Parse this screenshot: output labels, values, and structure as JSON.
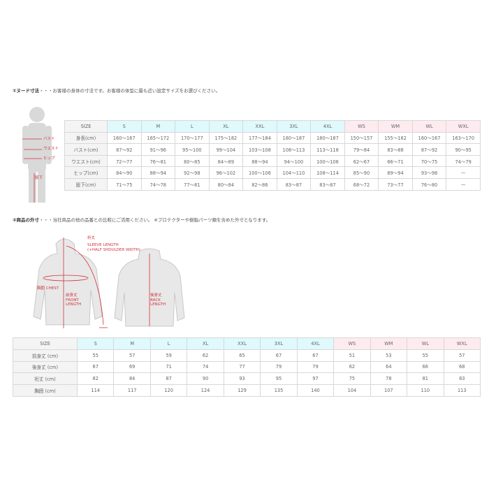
{
  "section1": {
    "title": "①ヌード寸法",
    "note": "・・・お客様の身体の寸法です。お客様の体型に最も近い設定サイズをお選びください。",
    "figure_labels": {
      "bust": "バスト",
      "waist": "ウエスト",
      "hip": "ヒップ",
      "inseam": "股下"
    },
    "headers": [
      "SIZE",
      "S",
      "M",
      "L",
      "XL",
      "XXL",
      "3XL",
      "4XL",
      "WS",
      "WM",
      "WL",
      "WXL"
    ],
    "rows": [
      {
        "label": "身長(cm)",
        "values": [
          "160～167",
          "165～172",
          "170～177",
          "175～182",
          "177～184",
          "180～187",
          "180～187",
          "150～157",
          "155～162",
          "160～167",
          "163～170"
        ]
      },
      {
        "label": "バスト(cm)",
        "values": [
          "87～92",
          "91～96",
          "95～100",
          "99～104",
          "103～108",
          "108～113",
          "113～118",
          "79～84",
          "83～88",
          "87～92",
          "90～95"
        ]
      },
      {
        "label": "ウエスト(cm)",
        "values": [
          "72～77",
          "76～81",
          "80～85",
          "84～89",
          "88～94",
          "94～100",
          "100～106",
          "62～67",
          "66～71",
          "70～75",
          "74～79"
        ]
      },
      {
        "label": "ヒップ(cm)",
        "values": [
          "84～90",
          "88～94",
          "92～98",
          "96～102",
          "100～106",
          "104～110",
          "108～114",
          "85～90",
          "89～94",
          "93～98",
          "—"
        ]
      },
      {
        "label": "股下(cm)",
        "values": [
          "71～75",
          "74～78",
          "77～81",
          "80～84",
          "82～86",
          "83～87",
          "83～87",
          "68～72",
          "73～77",
          "76～80",
          "—"
        ]
      }
    ]
  },
  "section2": {
    "title": "②商品の外寸",
    "note": "・・・当社商品の他の品番との比較にご活用ください。 ※プロテクターや樹脂パーツ類を含めた外寸となります。",
    "figure_labels": {
      "sleeve_jp": "裄丈",
      "sleeve_en1": "SLEEVE LENGTH",
      "sleeve_en2": "(+HALF SHOULDER WIDTH)",
      "chest": "胸囲 CHEST",
      "front_jp": "前身丈",
      "front_en1": "FRONT",
      "front_en2": "LENGTH",
      "back_jp": "後身丈",
      "back_en1": "BACK",
      "back_en2": "LENGTH"
    },
    "headers": [
      "SIZE",
      "S",
      "M",
      "L",
      "XL",
      "XXL",
      "3XL",
      "4XL",
      "WS",
      "WM",
      "WL",
      "WXL"
    ],
    "rows": [
      {
        "label": "前身丈 (cm)",
        "values": [
          "55",
          "57",
          "59",
          "62",
          "65",
          "67",
          "67",
          "51",
          "53",
          "55",
          "57"
        ]
      },
      {
        "label": "後身丈 (cm)",
        "values": [
          "67",
          "69",
          "71",
          "74",
          "77",
          "79",
          "79",
          "62",
          "64",
          "66",
          "68"
        ]
      },
      {
        "label": "裄丈 (cm)",
        "values": [
          "82",
          "84",
          "87",
          "90",
          "93",
          "95",
          "97",
          "75",
          "78",
          "81",
          "83"
        ]
      },
      {
        "label": "胸囲 (cm)",
        "values": [
          "114",
          "117",
          "120",
          "124",
          "129",
          "135",
          "140",
          "104",
          "107",
          "110",
          "113"
        ]
      }
    ]
  },
  "colors": {
    "mens_header": "#dff9fc",
    "womens_header": "#fdebf0",
    "label_bg": "#f4f4f4",
    "measure_red": "#d0323a"
  }
}
